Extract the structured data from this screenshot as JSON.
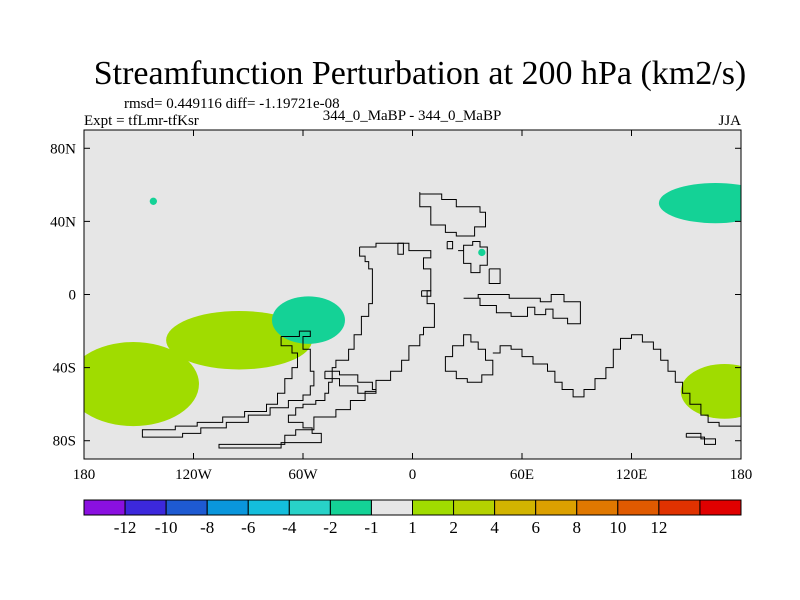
{
  "chart_data": {
    "type": "map_contour",
    "title": "Streamfunction Perturbation at 200 hPa (km2/s)",
    "stats": "rmsd= 0.449116 diff= -1.19721e-08",
    "comparison": "344_0_MaBP - 344_0_MaBP",
    "experiment": "Expt = tfLmr-tfKsr",
    "season": "JJA",
    "lon_range": [
      180,
      540
    ],
    "lat_range": [
      -90,
      90
    ],
    "x_ticks": [
      {
        "lon": 180,
        "label": "180"
      },
      {
        "lon": 240,
        "label": "120W"
      },
      {
        "lon": 300,
        "label": "60W"
      },
      {
        "lon": 360,
        "label": "0"
      },
      {
        "lon": 420,
        "label": "60E"
      },
      {
        "lon": 480,
        "label": "120E"
      },
      {
        "lon": 540,
        "label": "180"
      }
    ],
    "y_ticks": [
      {
        "lat": 80,
        "label": "80N"
      },
      {
        "lat": 40,
        "label": "40N"
      },
      {
        "lat": 0,
        "label": "0"
      },
      {
        "lat": -40,
        "label": "40S"
      },
      {
        "lat": -80,
        "label": "80S"
      }
    ],
    "colorbar": {
      "colors": [
        "#8a10e0",
        "#3c28dc",
        "#1e5ad2",
        "#0a96dc",
        "#14bedc",
        "#28d2c8",
        "#14d296",
        "#e6e6e6",
        "#a0dc00",
        "#b4d200",
        "#d2b400",
        "#dca000",
        "#e07800",
        "#e05a00",
        "#e03200",
        "#e00000"
      ],
      "labels": [
        "-12",
        "-10",
        "-8",
        "-6",
        "-4",
        "-2",
        "-1",
        "1",
        "2",
        "4",
        "6",
        "8",
        "10",
        "12"
      ]
    },
    "features": [
      {
        "name": "anomaly-blob",
        "value": 2,
        "color": "#a0dc00",
        "center_lon": 207,
        "center_lat": -49,
        "lon_span": 36,
        "lat_span": 23
      },
      {
        "name": "anomaly-blob",
        "value": 2,
        "color": "#a0dc00",
        "center_lon": 265,
        "center_lat": -25,
        "lon_span": 40,
        "lat_span": 16
      },
      {
        "name": "anomaly-blob",
        "value": -1,
        "color": "#14d296",
        "center_lon": 303,
        "center_lat": -14,
        "lon_span": 20,
        "lat_span": 13
      },
      {
        "name": "anomaly-blob",
        "value": -1,
        "color": "#14d296",
        "center_lon": 526,
        "center_lat": 50,
        "lon_span": 31,
        "lat_span": 11
      },
      {
        "name": "anomaly-blob",
        "value": 2,
        "color": "#a0dc00",
        "center_lon": 531,
        "center_lat": -53,
        "lon_span": 24,
        "lat_span": 15
      },
      {
        "name": "anomaly-dot",
        "value": -1,
        "color": "#14d296",
        "center_lon": 218,
        "center_lat": 51,
        "lon_span": 2,
        "lat_span": 2
      },
      {
        "name": "anomaly-dot",
        "value": -1,
        "color": "#14d296",
        "center_lon": 398,
        "center_lat": 23,
        "lon_span": 2,
        "lat_span": 2
      }
    ],
    "land_outlines": [
      [
        [
          364,
          56
        ],
        [
          364,
          48
        ],
        [
          370,
          48
        ],
        [
          370,
          38
        ],
        [
          378,
          38
        ],
        [
          378,
          34
        ],
        [
          384,
          34
        ],
        [
          384,
          32
        ],
        [
          394,
          32
        ],
        [
          394,
          37
        ],
        [
          400,
          37
        ],
        [
          400,
          45
        ],
        [
          397,
          45
        ],
        [
          397,
          48
        ],
        [
          384,
          48
        ],
        [
          384,
          52
        ],
        [
          376,
          52
        ],
        [
          376,
          55
        ],
        [
          364,
          55
        ]
      ],
      [
        [
          385,
          24
        ],
        [
          388,
          24
        ],
        [
          388,
          27
        ],
        [
          393,
          27
        ],
        [
          393,
          29
        ],
        [
          397,
          29
        ],
        [
          397,
          26
        ],
        [
          401,
          26
        ],
        [
          401,
          16
        ],
        [
          397,
          16
        ],
        [
          397,
          12
        ],
        [
          392,
          12
        ],
        [
          392,
          17
        ],
        [
          388,
          17
        ],
        [
          388,
          24
        ]
      ],
      [
        [
          379,
          29
        ],
        [
          382,
          29
        ],
        [
          382,
          25
        ],
        [
          379,
          25
        ],
        [
          379,
          29
        ]
      ],
      [
        [
          402,
          14
        ],
        [
          408,
          14
        ],
        [
          408,
          6
        ],
        [
          402,
          6
        ],
        [
          402,
          14
        ]
      ],
      [
        [
          352,
          28
        ],
        [
          355,
          28
        ],
        [
          355,
          22
        ],
        [
          352,
          22
        ],
        [
          352,
          28
        ]
      ],
      [
        [
          365,
          2
        ],
        [
          370,
          2
        ],
        [
          370,
          -1
        ],
        [
          365,
          -1
        ],
        [
          365,
          2
        ]
      ],
      [
        [
          388,
          -2
        ],
        [
          397,
          -2
        ],
        [
          397,
          -6
        ],
        [
          406,
          -6
        ],
        [
          406,
          -10
        ],
        [
          414,
          -10
        ],
        [
          414,
          -12
        ],
        [
          423,
          -12
        ],
        [
          423,
          -7
        ],
        [
          427,
          -7
        ],
        [
          427,
          -11
        ],
        [
          433,
          -11
        ],
        [
          433,
          -8
        ],
        [
          437,
          -8
        ],
        [
          437,
          -13
        ],
        [
          445,
          -13
        ],
        [
          445,
          -16
        ],
        [
          452,
          -16
        ],
        [
          452,
          -4
        ],
        [
          443,
          -4
        ],
        [
          443,
          0
        ],
        [
          436,
          0
        ],
        [
          436,
          -4
        ],
        [
          430,
          -4
        ],
        [
          430,
          -2
        ],
        [
          413,
          -2
        ],
        [
          413,
          0
        ],
        [
          396,
          0
        ],
        [
          396,
          -2
        ],
        [
          388,
          -2
        ]
      ],
      [
        [
          331,
          26
        ],
        [
          331,
          21
        ],
        [
          334,
          21
        ],
        [
          334,
          18
        ],
        [
          336,
          18
        ],
        [
          336,
          14
        ],
        [
          338,
          14
        ],
        [
          338,
          -5
        ],
        [
          336,
          -5
        ],
        [
          336,
          -12
        ],
        [
          332,
          -12
        ],
        [
          332,
          -22
        ],
        [
          328,
          -22
        ],
        [
          328,
          -30
        ],
        [
          325,
          -30
        ],
        [
          325,
          -36
        ],
        [
          318,
          -36
        ],
        [
          318,
          -40
        ],
        [
          316,
          -40
        ],
        [
          316,
          -48
        ],
        [
          314,
          -48
        ],
        [
          314,
          -54
        ],
        [
          312,
          -54
        ],
        [
          312,
          -58
        ],
        [
          307,
          -58
        ],
        [
          307,
          -60
        ],
        [
          300,
          -60
        ],
        [
          300,
          -62
        ],
        [
          296,
          -62
        ],
        [
          296,
          -66
        ],
        [
          292,
          -66
        ],
        [
          292,
          -70
        ],
        [
          300,
          -70
        ],
        [
          300,
          -73
        ],
        [
          305,
          -73
        ],
        [
          305,
          -76
        ],
        [
          310,
          -76
        ],
        [
          310,
          -81
        ],
        [
          288,
          -81
        ],
        [
          288,
          -84
        ],
        [
          254,
          -84
        ],
        [
          254,
          -82
        ],
        [
          290,
          -82
        ],
        [
          290,
          -77
        ],
        [
          296,
          -77
        ],
        [
          296,
          -74
        ],
        [
          306,
          -74
        ],
        [
          306,
          -67
        ],
        [
          318,
          -67
        ],
        [
          318,
          -63
        ],
        [
          326,
          -63
        ],
        [
          326,
          -58
        ],
        [
          334,
          -58
        ],
        [
          334,
          -53
        ],
        [
          340,
          -53
        ],
        [
          340,
          -47
        ],
        [
          348,
          -47
        ],
        [
          348,
          -42
        ],
        [
          354,
          -42
        ],
        [
          354,
          -36
        ],
        [
          358,
          -36
        ],
        [
          358,
          -28
        ],
        [
          364,
          -28
        ],
        [
          364,
          -22
        ],
        [
          366,
          -22
        ],
        [
          366,
          -18
        ],
        [
          372,
          -18
        ],
        [
          372,
          -5
        ],
        [
          368,
          -5
        ],
        [
          368,
          2
        ],
        [
          370,
          2
        ],
        [
          370,
          14
        ],
        [
          366,
          14
        ],
        [
          366,
          20
        ],
        [
          370,
          20
        ],
        [
          370,
          24
        ],
        [
          358,
          24
        ],
        [
          358,
          28
        ],
        [
          340,
          28
        ],
        [
          340,
          26
        ],
        [
          331,
          26
        ]
      ],
      [
        [
          288,
          -23
        ],
        [
          298,
          -23
        ],
        [
          298,
          -20
        ],
        [
          304,
          -20
        ],
        [
          304,
          -23
        ],
        [
          300,
          -23
        ],
        [
          300,
          -30
        ],
        [
          304,
          -30
        ],
        [
          304,
          -42
        ],
        [
          306,
          -42
        ],
        [
          306,
          -50
        ],
        [
          304,
          -50
        ],
        [
          304,
          -55
        ],
        [
          300,
          -55
        ],
        [
          300,
          -58
        ],
        [
          292,
          -58
        ],
        [
          292,
          -62
        ],
        [
          282,
          -62
        ],
        [
          282,
          -66
        ],
        [
          270,
          -66
        ],
        [
          270,
          -70
        ],
        [
          258,
          -70
        ],
        [
          258,
          -73
        ],
        [
          244,
          -73
        ],
        [
          244,
          -76
        ],
        [
          234,
          -76
        ],
        [
          234,
          -78
        ],
        [
          212,
          -78
        ],
        [
          212,
          -74
        ],
        [
          230,
          -74
        ],
        [
          230,
          -72
        ],
        [
          242,
          -72
        ],
        [
          242,
          -70
        ],
        [
          256,
          -70
        ],
        [
          256,
          -67
        ],
        [
          268,
          -67
        ],
        [
          268,
          -64
        ],
        [
          280,
          -64
        ],
        [
          280,
          -60
        ],
        [
          286,
          -60
        ],
        [
          286,
          -54
        ],
        [
          290,
          -54
        ],
        [
          290,
          -46
        ],
        [
          294,
          -46
        ],
        [
          294,
          -40
        ],
        [
          297,
          -40
        ],
        [
          297,
          -32
        ],
        [
          294,
          -32
        ],
        [
          294,
          -28
        ],
        [
          288,
          -28
        ],
        [
          288,
          -23
        ]
      ],
      [
        [
          312,
          -42
        ],
        [
          312,
          -46
        ],
        [
          320,
          -46
        ],
        [
          320,
          -50
        ],
        [
          330,
          -50
        ],
        [
          330,
          -54
        ],
        [
          340,
          -54
        ],
        [
          340,
          -52
        ],
        [
          338,
          -52
        ],
        [
          338,
          -48
        ],
        [
          330,
          -48
        ],
        [
          330,
          -44
        ],
        [
          320,
          -44
        ],
        [
          320,
          -42
        ],
        [
          312,
          -42
        ]
      ],
      [
        [
          378,
          -38
        ],
        [
          378,
          -34
        ],
        [
          382,
          -34
        ],
        [
          382,
          -28
        ],
        [
          388,
          -28
        ],
        [
          388,
          -22
        ],
        [
          392,
          -22
        ],
        [
          392,
          -26
        ],
        [
          396,
          -26
        ],
        [
          396,
          -30
        ],
        [
          400,
          -30
        ],
        [
          400,
          -36
        ],
        [
          404,
          -36
        ],
        [
          404,
          -44
        ],
        [
          398,
          -44
        ],
        [
          398,
          -48
        ],
        [
          390,
          -48
        ],
        [
          390,
          -46
        ],
        [
          384,
          -46
        ],
        [
          384,
          -42
        ],
        [
          378,
          -42
        ],
        [
          378,
          -38
        ]
      ],
      [
        [
          404,
          -32
        ],
        [
          408,
          -32
        ],
        [
          408,
          -28
        ],
        [
          414,
          -28
        ],
        [
          414,
          -30
        ],
        [
          420,
          -30
        ],
        [
          420,
          -34
        ],
        [
          426,
          -34
        ],
        [
          426,
          -38
        ],
        [
          434,
          -38
        ],
        [
          434,
          -42
        ],
        [
          438,
          -42
        ],
        [
          438,
          -48
        ],
        [
          442,
          -48
        ],
        [
          442,
          -52
        ],
        [
          448,
          -52
        ],
        [
          448,
          -56
        ],
        [
          454,
          -56
        ],
        [
          454,
          -52
        ],
        [
          460,
          -52
        ],
        [
          460,
          -46
        ],
        [
          466,
          -46
        ],
        [
          466,
          -40
        ],
        [
          470,
          -40
        ],
        [
          470,
          -30
        ],
        [
          474,
          -30
        ],
        [
          474,
          -24
        ],
        [
          480,
          -24
        ],
        [
          480,
          -22
        ],
        [
          486,
          -22
        ],
        [
          486,
          -26
        ],
        [
          492,
          -26
        ],
        [
          492,
          -30
        ],
        [
          496,
          -30
        ],
        [
          496,
          -36
        ],
        [
          500,
          -36
        ],
        [
          500,
          -42
        ],
        [
          504,
          -42
        ],
        [
          504,
          -48
        ],
        [
          508,
          -48
        ],
        [
          508,
          -54
        ],
        [
          512,
          -54
        ],
        [
          512,
          -60
        ],
        [
          518,
          -60
        ],
        [
          518,
          -66
        ],
        [
          522,
          -66
        ],
        [
          522,
          -70
        ],
        [
          528,
          -70
        ],
        [
          528,
          -72
        ],
        [
          540,
          -72
        ]
      ],
      [
        [
          510,
          -76
        ],
        [
          510,
          -78
        ],
        [
          520,
          -78
        ],
        [
          520,
          -82
        ],
        [
          526,
          -82
        ],
        [
          526,
          -79
        ],
        [
          518,
          -79
        ],
        [
          518,
          -76
        ],
        [
          510,
          -76
        ]
      ]
    ]
  }
}
